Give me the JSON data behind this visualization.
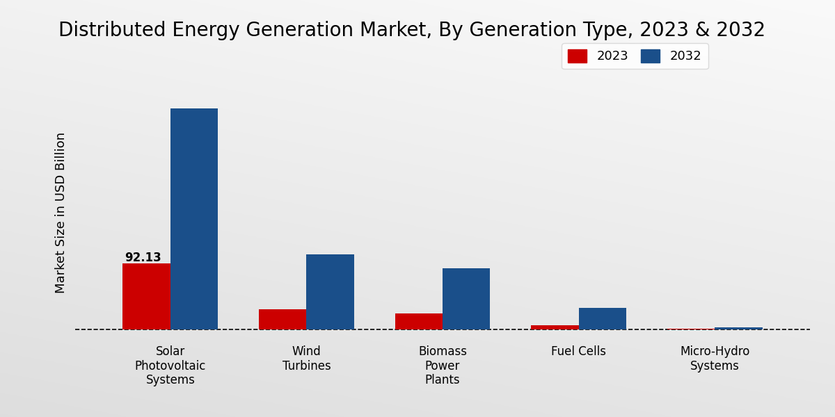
{
  "title": "Distributed Energy Generation Market, By Generation Type, 2023 & 2032",
  "ylabel": "Market Size in USD Billion",
  "categories": [
    "Solar\nPhotovoltaic\nSystems",
    "Wind\nTurbines",
    "Biomass\nPower\nPlants",
    "Fuel Cells",
    "Micro-Hydro\nSystems"
  ],
  "values_2023": [
    92.13,
    28.0,
    22.0,
    5.5,
    0.8
  ],
  "values_2032": [
    310.0,
    105.0,
    85.0,
    30.0,
    2.5
  ],
  "color_2023": "#cc0000",
  "color_2032": "#1a4f8a",
  "annotation_label": "92.13",
  "bar_width": 0.35,
  "legend_labels": [
    "2023",
    "2032"
  ],
  "title_fontsize": 20,
  "axis_label_fontsize": 13,
  "tick_label_fontsize": 12,
  "legend_fontsize": 13,
  "annotation_fontsize": 12,
  "bg_color_light": "#f0f0f0",
  "bg_color_dark": "#c8c8c8"
}
